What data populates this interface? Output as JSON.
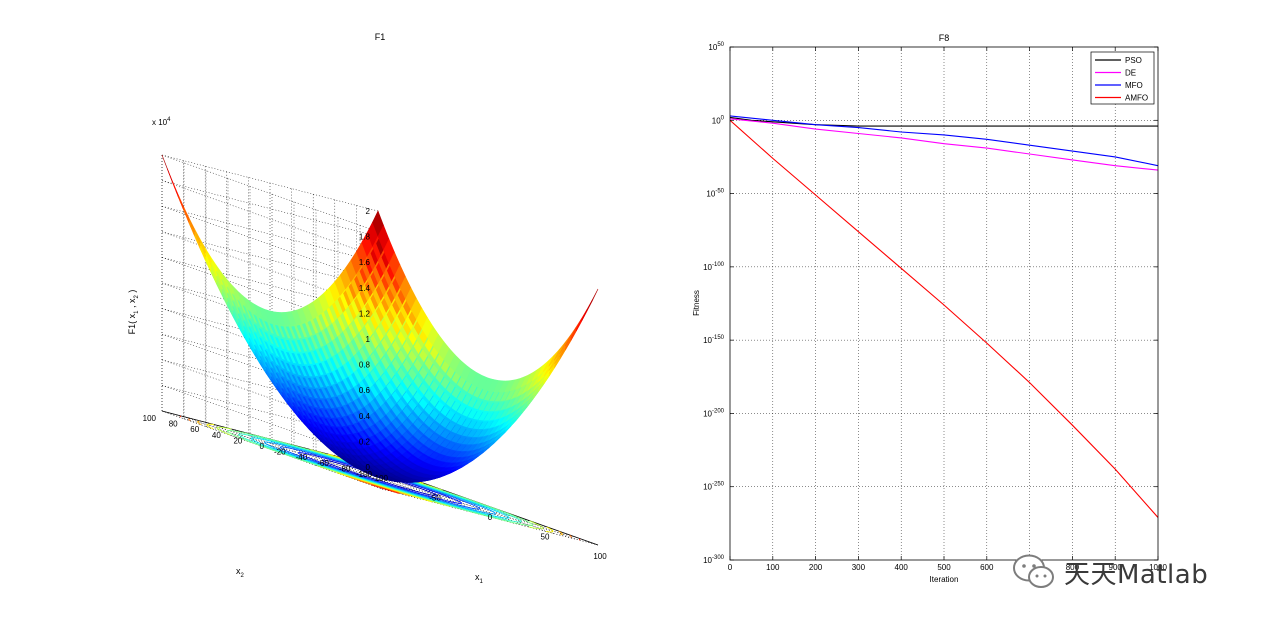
{
  "chart_data": [
    {
      "type": "surface3d",
      "title": "F1",
      "xlabel": "x",
      "xlabel_sub": "1",
      "ylabel": "x",
      "ylabel_sub": "2",
      "zlabel": "F1( x",
      "zlabel_mid": " , x",
      "zlabel_sub1": "1",
      "zlabel_sub2": "2",
      "zlabel_end": " )",
      "z_exponent_base": "x 10",
      "z_exponent": "4",
      "x_ticks": [
        "-100",
        "-50",
        "0",
        "50",
        "100"
      ],
      "y_ticks": [
        "-100",
        "-80",
        "-60",
        "-40",
        "-20",
        "0",
        "20",
        "40",
        "60",
        "80",
        "100"
      ],
      "z_ticks": [
        "0",
        "0.2",
        "0.4",
        "0.6",
        "0.8",
        "1",
        "1.2",
        "1.4",
        "1.6",
        "1.8",
        "2"
      ],
      "xlim": [
        -100,
        100
      ],
      "ylim": [
        -100,
        100
      ],
      "zlim": [
        0,
        20000
      ],
      "colormap": "jet",
      "contours_on_floor": true,
      "grid": true
    },
    {
      "type": "line",
      "title": "F8",
      "xlabel": "Iteration",
      "ylabel": "Fitness",
      "yscale": "log",
      "xlim": [
        0,
        1000
      ],
      "ylim_exponent": [
        -300,
        50
      ],
      "x_ticks": [
        "0",
        "100",
        "200",
        "300",
        "400",
        "500",
        "600",
        "700",
        "800",
        "900",
        "1000"
      ],
      "y_tick_base": "10",
      "y_tick_exponents": [
        "50",
        "0",
        "-50",
        "-100",
        "-150",
        "-200",
        "-250",
        "-300"
      ],
      "grid": true,
      "legend_position": "top-right",
      "series": [
        {
          "name": "PSO",
          "color": "#000000",
          "x": [
            0,
            50,
            100,
            200,
            300,
            400,
            1000
          ],
          "log10_y": [
            2,
            0,
            -1,
            -3,
            -4,
            -4,
            -4
          ]
        },
        {
          "name": "DE",
          "color": "#ff00ff",
          "x": [
            0,
            100,
            200,
            300,
            400,
            500,
            600,
            700,
            800,
            900,
            1000
          ],
          "log10_y": [
            1,
            -2,
            -6,
            -9,
            -12,
            -16,
            -19,
            -23,
            -27,
            -31,
            -34
          ]
        },
        {
          "name": "MFO",
          "color": "#0000ff",
          "x": [
            0,
            100,
            200,
            300,
            400,
            500,
            600,
            700,
            800,
            900,
            1000
          ],
          "log10_y": [
            3,
            0,
            -3,
            -5,
            -8,
            -10,
            -13,
            -17,
            -21,
            -25,
            -31
          ]
        },
        {
          "name": "AMFO",
          "color": "#ff0000",
          "x": [
            0,
            100,
            200,
            300,
            400,
            500,
            600,
            700,
            800,
            900,
            1000
          ],
          "log10_y": [
            0,
            -26,
            -51,
            -76,
            -101,
            -126,
            -152,
            -179,
            -208,
            -238,
            -271
          ]
        }
      ]
    }
  ],
  "watermark": {
    "text": "天天Matlab",
    "icon": "wechat-icon"
  }
}
